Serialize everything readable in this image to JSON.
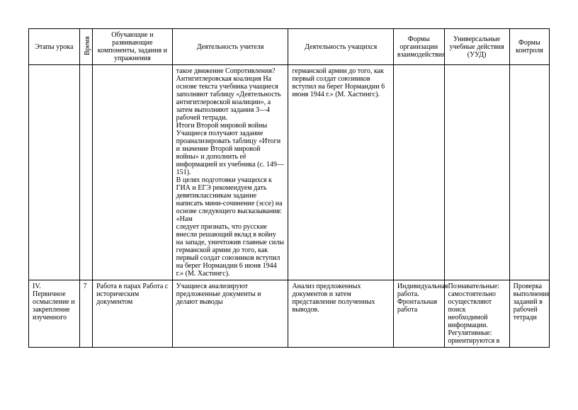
{
  "headers": {
    "stage": "Этапы урока",
    "time": "Время",
    "components": "Обучающие и развивающие компоненты, задания и упражнения",
    "teacher": "Деятельность учителя",
    "students": "Деятельность учащихся",
    "forms": "Формы организации взаимодействия",
    "uud": "Универсальные учебные действия (УУД)",
    "control": "Формы контроля"
  },
  "row1": {
    "stage": "",
    "time": "",
    "components": "",
    "teacher": "такое движение Сопротивления?\nАнтигитлеровская коалиция На основе текста учебника учащиеся заполняют таблицу «Деятельность антигитлеровской коалиции», а затем выполняют задания 3—4 рабочей тетради.\nИтоги Второй мировой войны Учащиеся получают задание проанализировать таблицу «Итоги и значение Второй мировой войны» и дополнить её информацией из учебника (с. 149—151).\nВ целях подготовки учащихся к ГИА и ЕГЭ рекомендуем дать девятиклассникам задание написать мини-сочинение (эссе) на основе следующего высказывания: «Нам\nследует признать, что русские внесли решающий вклад в войну на западе, уничтожив главные силы германской армии до того, как первый солдат союзников вступил на берег Нормандии 6 июня 1944 г.» (М. Хастингс).",
    "students": "германской армии до того, как первый солдат союзников вступил на берег Нормандии 6 июня 1944 г.» (М. Хастингс).",
    "forms": "",
    "uud": "",
    "control": ""
  },
  "row2": {
    "stage": "IV. Первичное осмысление и закрепление изученного",
    "time": "7",
    "components": "Работа в парах Работа с историческим документом",
    "teacher": "Учащиеся анализируют предложенные документы и делают выводы",
    "students": "Анализ предложенных документов и затем представление полученных выводов.",
    "forms": "Индивидуальная работа. Фронтальная работа",
    "uud": "Познавательные: самостоятельно осуществляют поиск необходимой информации. Регулятивные: ориентируются в",
    "control": "Проверка выполнения заданий в рабочей тетради"
  }
}
